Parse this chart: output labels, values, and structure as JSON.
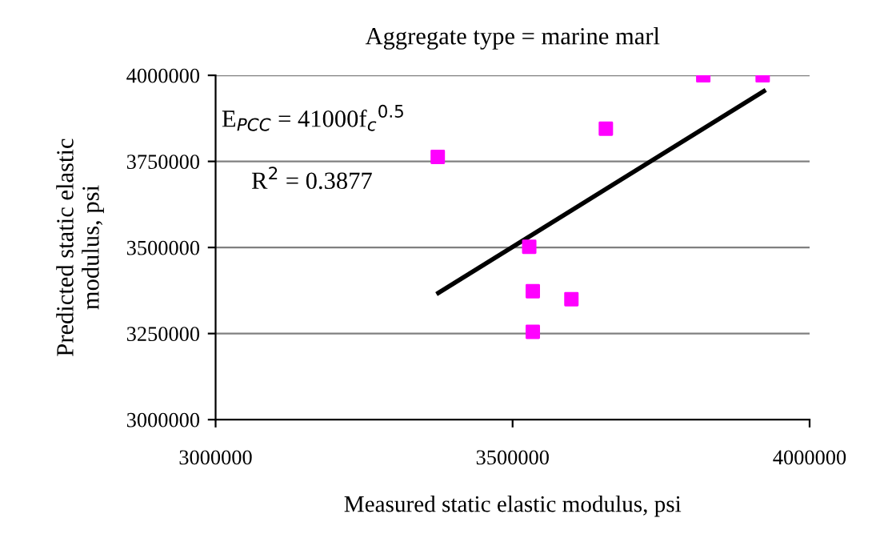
{
  "chart_data": {
    "type": "scatter",
    "title": "Aggregate type = marine marl",
    "xlabel": "Measured static elastic modulus, psi",
    "ylabel": "Predicted static elastic\nmodulus, psi",
    "annotations": [
      "E$_{PCC}$ = 41000f$_{c}$$^{0.5}$",
      "R$^{2}$ = 0.3877"
    ],
    "series": [
      {
        "color": "#ff00ff",
        "marker": "square",
        "x": [
          3374000,
          3528000,
          3534000,
          3599000,
          3534000,
          3657000,
          3821000,
          3921000
        ],
        "values": [
          3763000,
          3502000,
          3373000,
          3350000,
          3255000,
          3845000,
          4000000,
          4000000
        ]
      },
      {
        "type": "line",
        "color": "#000000",
        "line_style": "solid",
        "marker": "none",
        "x": [
          3375000,
          3923000
        ],
        "values": [
          3368000,
          3954000
        ]
      }
    ],
    "xlim": [
      3000000,
      4000000
    ],
    "xticks": [
      3000000,
      3500000,
      4000000
    ],
    "ylim": [
      3000000,
      4000000
    ],
    "yticks": [
      3000000,
      3250000,
      3500000,
      3750000,
      4000000
    ],
    "grid": "y",
    "legend": false
  }
}
